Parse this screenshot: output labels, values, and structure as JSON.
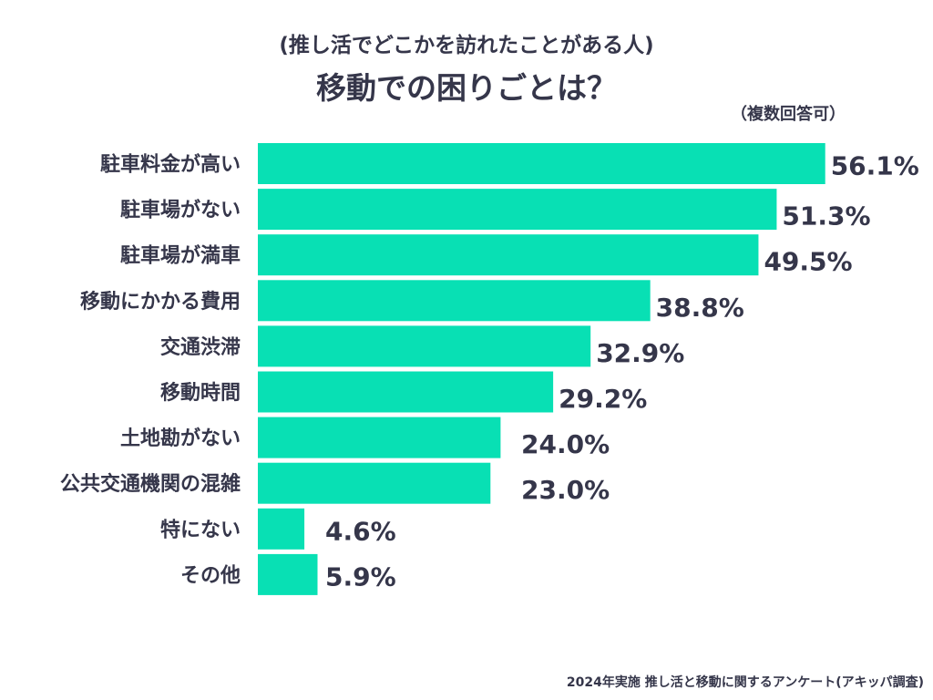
{
  "header": {
    "subtitle": "(推し活でどこかを訪れたことがある人)",
    "title": "移動での困りごとは？",
    "note": "（複数回答可）"
  },
  "chart_data": {
    "type": "bar",
    "orientation": "horizontal",
    "categories": [
      "駐車料金が高い",
      "駐車場がない",
      "駐車場が満車",
      "移動にかかる費用",
      "交通渋滞",
      "移動時間",
      "土地勘がない",
      "公共交通機関の混雑",
      "特にない",
      "その他"
    ],
    "values": [
      56.1,
      51.3,
      49.5,
      38.8,
      32.9,
      29.2,
      24.0,
      23.0,
      4.6,
      5.9
    ],
    "labels": [
      "56.1%",
      "51.3%",
      "49.5%",
      "38.8%",
      "32.9%",
      "29.2%",
      "24.0%",
      "23.0%",
      "4.6%",
      "5.9%"
    ],
    "unit": "%",
    "bar_color": "#08e0b4",
    "text_color": "#35364a"
  },
  "footer": {
    "source": "2024年実施 推し活と移動に関するアンケート(アキッパ調査)"
  }
}
